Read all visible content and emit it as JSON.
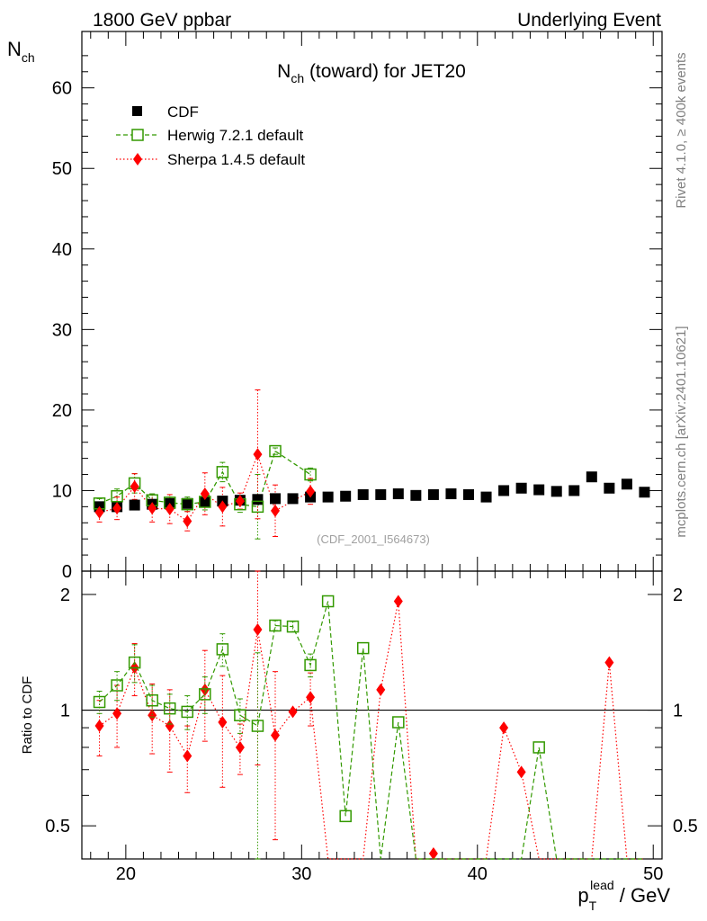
{
  "header": {
    "left": "1800 GeV ppbar",
    "right": "Underlying Event"
  },
  "side_labels": {
    "rivet": "Rivet 4.1.0, ≥ 400k events",
    "mcplots": "mcplots.cern.ch [arXiv:2401.10621]"
  },
  "colors": {
    "cdf": "#000000",
    "herwig": "#339900",
    "sherpa": "#ff0000",
    "watermark": "#a0a0a0"
  },
  "chart_data": [
    {
      "type": "scatter",
      "title_main": "N",
      "title_sub": "ch",
      "title_rest": " (toward) for JET20",
      "ylabel_main": "N",
      "ylabel_sub": "ch",
      "xlim": [
        17.5,
        50.5
      ],
      "ylim": [
        0,
        67
      ],
      "yticks": [
        0,
        10,
        20,
        30,
        40,
        50,
        60
      ],
      "ytick_labels": [
        "0",
        "10",
        "20",
        "30",
        "40",
        "50",
        "60"
      ],
      "watermark": "(CDF_2001_I564673)",
      "legend": [
        "CDF",
        "Herwig 7.2.1 default",
        "Sherpa 1.4.5 default"
      ],
      "series": [
        {
          "name": "CDF",
          "x": [
            18.5,
            19.5,
            20.5,
            21.5,
            22.5,
            23.5,
            24.5,
            25.5,
            26.5,
            27.5,
            28.5,
            29.5,
            30.5,
            31.5,
            32.5,
            33.5,
            34.5,
            35.5,
            36.5,
            37.5,
            38.5,
            39.5,
            40.5,
            41.5,
            42.5,
            43.5,
            44.5,
            45.5,
            46.5,
            47.5,
            48.5,
            49.5
          ],
          "y": [
            8.0,
            8.0,
            8.2,
            8.3,
            8.4,
            8.4,
            8.6,
            8.7,
            8.8,
            8.9,
            9.0,
            9.0,
            9.2,
            9.2,
            9.3,
            9.5,
            9.5,
            9.6,
            9.4,
            9.5,
            9.6,
            9.5,
            9.2,
            10.0,
            10.3,
            10.1,
            9.9,
            10.0,
            11.7,
            10.3,
            10.8,
            9.8
          ]
        },
        {
          "name": "Herwig 7.2.1 default",
          "x": [
            18.5,
            19.5,
            20.5,
            21.5,
            22.5,
            23.5,
            24.5,
            25.5,
            26.5,
            27.5,
            28.5,
            30.5
          ],
          "y": [
            8.4,
            9.3,
            10.9,
            8.8,
            8.5,
            8.3,
            8.6,
            12.3,
            8.3,
            8.0,
            14.9,
            12.0
          ],
          "yerr": [
            0.6,
            0.9,
            1.2,
            0.8,
            0.7,
            0.9,
            1.0,
            1.2,
            1.0,
            4.0,
            0.4,
            0.8
          ]
        },
        {
          "name": "Sherpa 1.4.5 default",
          "x": [
            18.5,
            19.5,
            20.5,
            21.5,
            22.5,
            23.5,
            24.5,
            25.5,
            26.5,
            27.5,
            28.5,
            30.5
          ],
          "y": [
            7.3,
            7.8,
            10.5,
            7.8,
            7.7,
            6.2,
            9.6,
            8.0,
            8.7,
            14.5,
            7.5,
            9.9
          ],
          "yerr": [
            1.2,
            1.4,
            1.6,
            1.7,
            1.8,
            1.2,
            2.6,
            2.4,
            1.0,
            8.0,
            3.2,
            1.6
          ]
        }
      ]
    },
    {
      "type": "line",
      "ylabel": "Ratio to CDF",
      "xlabel_main": "p",
      "xlabel_sub": "T",
      "xlabel_sup": "lead",
      "xlabel_rest": " / GeV",
      "xlim": [
        17.5,
        50.5
      ],
      "ylim": [
        0.41,
        2.3
      ],
      "log_y": true,
      "xticks": [
        20,
        30,
        40,
        50
      ],
      "xtick_labels": [
        "20",
        "30",
        "40",
        "50"
      ],
      "yticks": [
        0.5,
        1,
        2
      ],
      "ytick_labels": [
        "0.5",
        "1",
        "2"
      ],
      "reference": 1,
      "series": [
        {
          "name": "Herwig 7.2.1 default",
          "x": [
            18.5,
            19.5,
            20.5,
            21.5,
            22.5,
            23.5,
            24.5,
            25.5,
            26.5,
            27.5,
            28.5,
            29.5,
            30.5,
            31.5,
            32.5,
            33.5,
            34.5,
            35.5,
            36.5,
            37.5,
            38.5,
            39.5,
            40.5,
            41.5,
            42.5,
            43.5,
            44.5,
            45.5,
            46.5,
            47.5,
            48.5,
            49.5
          ],
          "y": [
            1.05,
            1.16,
            1.33,
            1.06,
            1.01,
            0.99,
            1.1,
            1.44,
            0.97,
            0.91,
            1.66,
            1.65,
            1.31,
            1.92,
            0.53,
            1.45,
            0.0,
            0.93,
            0.0,
            0.0,
            0.0,
            0.0,
            0.0,
            0.0,
            0.0,
            0.8,
            0.0,
            0.0,
            0.0,
            0.0,
            0.0,
            0.0
          ],
          "yerr": [
            0.07,
            0.1,
            0.15,
            0.1,
            0.09,
            0.1,
            0.12,
            0.14,
            0.1,
            0.5,
            0.05,
            0.05,
            0.09,
            0.0,
            0.0,
            0.0,
            0.0,
            0.0,
            0.0,
            0.0,
            0.0,
            0.0,
            0.0,
            0.0,
            0.0,
            0.0,
            0.0,
            0.0,
            0.0,
            0.0,
            0.0,
            0.0
          ]
        },
        {
          "name": "Sherpa 1.4.5 default",
          "x": [
            18.5,
            19.5,
            20.5,
            21.5,
            22.5,
            23.5,
            24.5,
            25.5,
            26.5,
            27.5,
            28.5,
            29.5,
            30.5,
            31.5,
            32.5,
            33.5,
            34.5,
            35.5,
            36.5,
            37.5,
            38.5,
            39.5,
            40.5,
            41.5,
            42.5,
            43.5,
            44.5,
            45.5,
            46.5,
            47.5,
            48.5,
            49.5
          ],
          "y": [
            0.91,
            0.98,
            1.29,
            0.97,
            0.91,
            0.76,
            1.13,
            0.93,
            0.8,
            1.62,
            0.86,
            0.99,
            1.08,
            0.0,
            0.0,
            0.0,
            1.13,
            1.92,
            0.0,
            0.4,
            0.0,
            0.0,
            0.0,
            0.9,
            0.69,
            0.0,
            0.0,
            0.0,
            0.0,
            1.33,
            0.0,
            0.0
          ],
          "yerr": [
            0.15,
            0.18,
            0.2,
            0.2,
            0.22,
            0.15,
            0.3,
            0.3,
            0.12,
            0.9,
            0.4,
            0.0,
            0.17,
            0.0,
            0.0,
            0.0,
            0.0,
            0.0,
            0.0,
            0.0,
            0.0,
            0.0,
            0.0,
            0.0,
            0.0,
            0.0,
            0.0,
            0.0,
            0.0,
            0.0,
            0.0,
            0.0
          ]
        }
      ]
    }
  ]
}
